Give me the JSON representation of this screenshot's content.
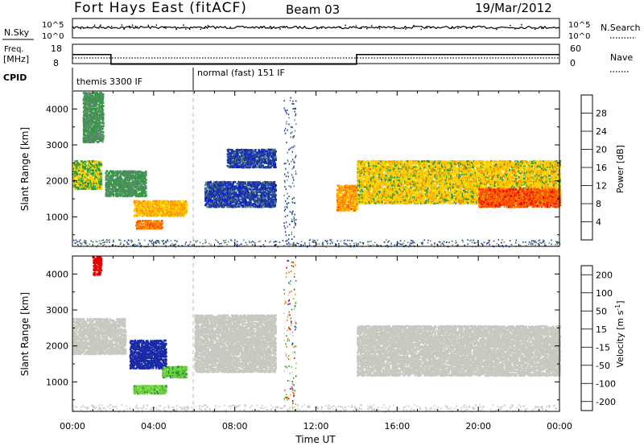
{
  "header": {
    "station": "Fort Hays East (fitACF)",
    "beam": "Beam 03",
    "date": "19/Mar/2012"
  },
  "panels": {
    "noise": {
      "left_label": "N.Sky",
      "right_label": "N.Search",
      "left_ticks": [
        "10^5",
        "10^0"
      ],
      "right_ticks": [
        "10^5",
        "10^0"
      ]
    },
    "frequency": {
      "left_label_1": "Freq.",
      "left_label_2": "[MHz]",
      "right_label": "Nave",
      "left_ticks": [
        "18",
        "8"
      ],
      "right_ticks": [
        "60",
        "0"
      ]
    },
    "cpid": {
      "label": "CPID",
      "segments": [
        {
          "label": "themis 3300 IF",
          "start_hour": 0,
          "end_hour": 6
        },
        {
          "label": "normal (fast) 151 IF",
          "start_hour": 6,
          "end_hour": 24
        }
      ]
    }
  },
  "colorbars": {
    "power": {
      "label": "Power [dB]",
      "ticks": [
        "28",
        "24",
        "20",
        "16",
        "12",
        "8",
        "4"
      ],
      "colors": [
        "#e80000",
        "#ff5000",
        "#ff9500",
        "#ffd000",
        "#2e9a3c",
        "#5c8a70",
        "#1e3c9c",
        "#0a14e0"
      ]
    },
    "velocity": {
      "label_main": "Velocity [m s",
      "label_sup": "-1",
      "label_end": "]",
      "ticks": [
        "200",
        "100",
        "50",
        "15",
        "-15",
        "-50",
        "-100",
        "-200"
      ],
      "colors": [
        "#1a2aa8",
        "#2f8f3c",
        "#6cd23c",
        "#c8c8c0",
        "#c8c8c0",
        "#f0a000",
        "#ff6a00",
        "#e80000"
      ]
    }
  },
  "axes": {
    "ylabel": "Slant Range [km]",
    "xlabel": "Time UT",
    "y_ticks": [
      "4000",
      "3000",
      "2000",
      "1000"
    ],
    "x_ticks": [
      "00:00",
      "04:00",
      "08:00",
      "12:00",
      "16:00",
      "20:00",
      "00:00"
    ]
  },
  "chart_data": {
    "type": "heatmap",
    "title": "Fort Hays East (fitACF)",
    "xlabel": "Time UT",
    "ylabel": "Slant Range [km]",
    "xlim_hours": [
      0,
      24
    ],
    "ylim_km": [
      180,
      4500
    ],
    "frequency_mhz": [
      {
        "start_hour": 0.0,
        "end_hour": 1.9,
        "value": 13.5
      },
      {
        "start_hour": 1.9,
        "end_hour": 14.0,
        "value": 8.5
      },
      {
        "start_hour": 14.0,
        "end_hour": 24.0,
        "value": 13.5
      }
    ],
    "power_regions_db": [
      {
        "t0": 0.0,
        "t1": 1.4,
        "r0": 1800,
        "r1": 2600,
        "value": 16
      },
      {
        "t0": 1.6,
        "t1": 3.6,
        "r0": 1600,
        "r1": 2300,
        "value": 12
      },
      {
        "t0": 3.0,
        "t1": 5.6,
        "r0": 1050,
        "r1": 1500,
        "value": 20
      },
      {
        "t0": 3.1,
        "t1": 4.4,
        "r0": 700,
        "r1": 950,
        "value": 24
      },
      {
        "t0": 0.5,
        "t1": 1.5,
        "r0": 3100,
        "r1": 4500,
        "value": 12
      },
      {
        "t0": 7.6,
        "t1": 10.0,
        "r0": 2400,
        "r1": 2900,
        "value": 6
      },
      {
        "t0": 6.5,
        "t1": 10.0,
        "r0": 1300,
        "r1": 2000,
        "value": 6
      },
      {
        "t0": 13.0,
        "t1": 14.0,
        "r0": 1200,
        "r1": 1900,
        "value": 22
      },
      {
        "t0": 14.0,
        "t1": 24.0,
        "r0": 1400,
        "r1": 2600,
        "value": 18
      },
      {
        "t0": 20.0,
        "t1": 24.0,
        "r0": 1300,
        "r1": 1800,
        "value": 26
      }
    ],
    "velocity_regions_ms": [
      {
        "t0": 0.0,
        "t1": 2.6,
        "r0": 1800,
        "r1": 2800,
        "value": 0
      },
      {
        "t0": 2.8,
        "t1": 4.6,
        "r0": 1400,
        "r1": 2200,
        "value": 200
      },
      {
        "t0": 4.4,
        "t1": 5.6,
        "r0": 1150,
        "r1": 1450,
        "value": 70
      },
      {
        "t0": 3.0,
        "t1": 4.6,
        "r0": 700,
        "r1": 950,
        "value": 60
      },
      {
        "t0": 1.0,
        "t1": 1.4,
        "r0": 4000,
        "r1": 4500,
        "value": -200
      },
      {
        "t0": 6.0,
        "t1": 10.0,
        "r0": 1300,
        "r1": 2900,
        "value": 0
      },
      {
        "t0": 14.0,
        "t1": 24.0,
        "r0": 1200,
        "r1": 2600,
        "value": 0
      }
    ]
  }
}
